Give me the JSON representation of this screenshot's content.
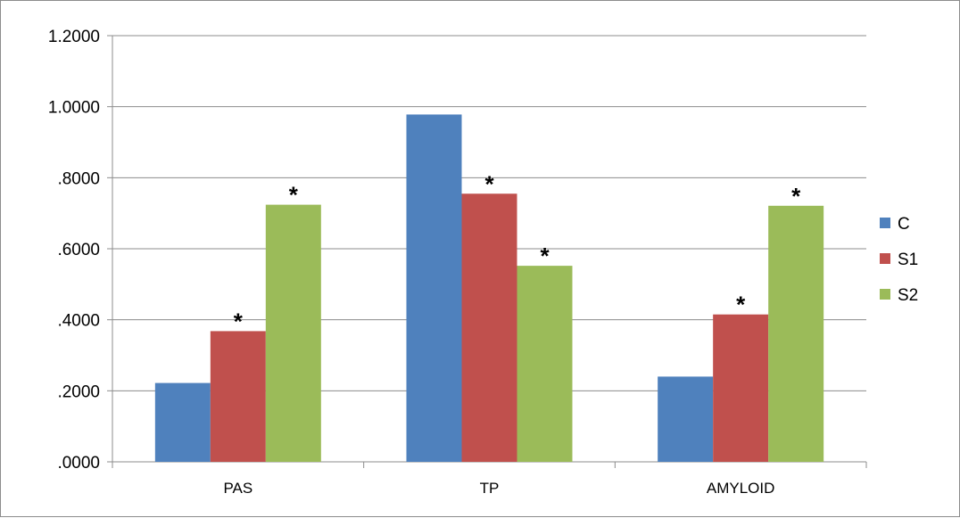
{
  "chart_data": {
    "type": "bar",
    "categories": [
      "PAS",
      "TP",
      "AMYLOID"
    ],
    "series": [
      {
        "name": "C",
        "color": "#4F81BD",
        "values": [
          0.222,
          0.978,
          0.24
        ],
        "significant": [
          false,
          false,
          false
        ]
      },
      {
        "name": "S1",
        "color": "#C0504D",
        "values": [
          0.368,
          0.755,
          0.415
        ],
        "significant": [
          true,
          true,
          true
        ]
      },
      {
        "name": "S2",
        "color": "#9BBB59",
        "values": [
          0.724,
          0.552,
          0.721
        ],
        "significant": [
          true,
          true,
          true
        ]
      }
    ],
    "significance_marker": "*",
    "ylim": [
      0,
      1.2
    ],
    "yticks": [
      0,
      0.2,
      0.4,
      0.6,
      0.8,
      1.0,
      1.2
    ],
    "ytick_labels": [
      ".0000",
      ".2000",
      ".4000",
      ".6000",
      ".8000",
      "1.0000",
      "1.2000"
    ],
    "grid": true,
    "legend_position": "right"
  }
}
